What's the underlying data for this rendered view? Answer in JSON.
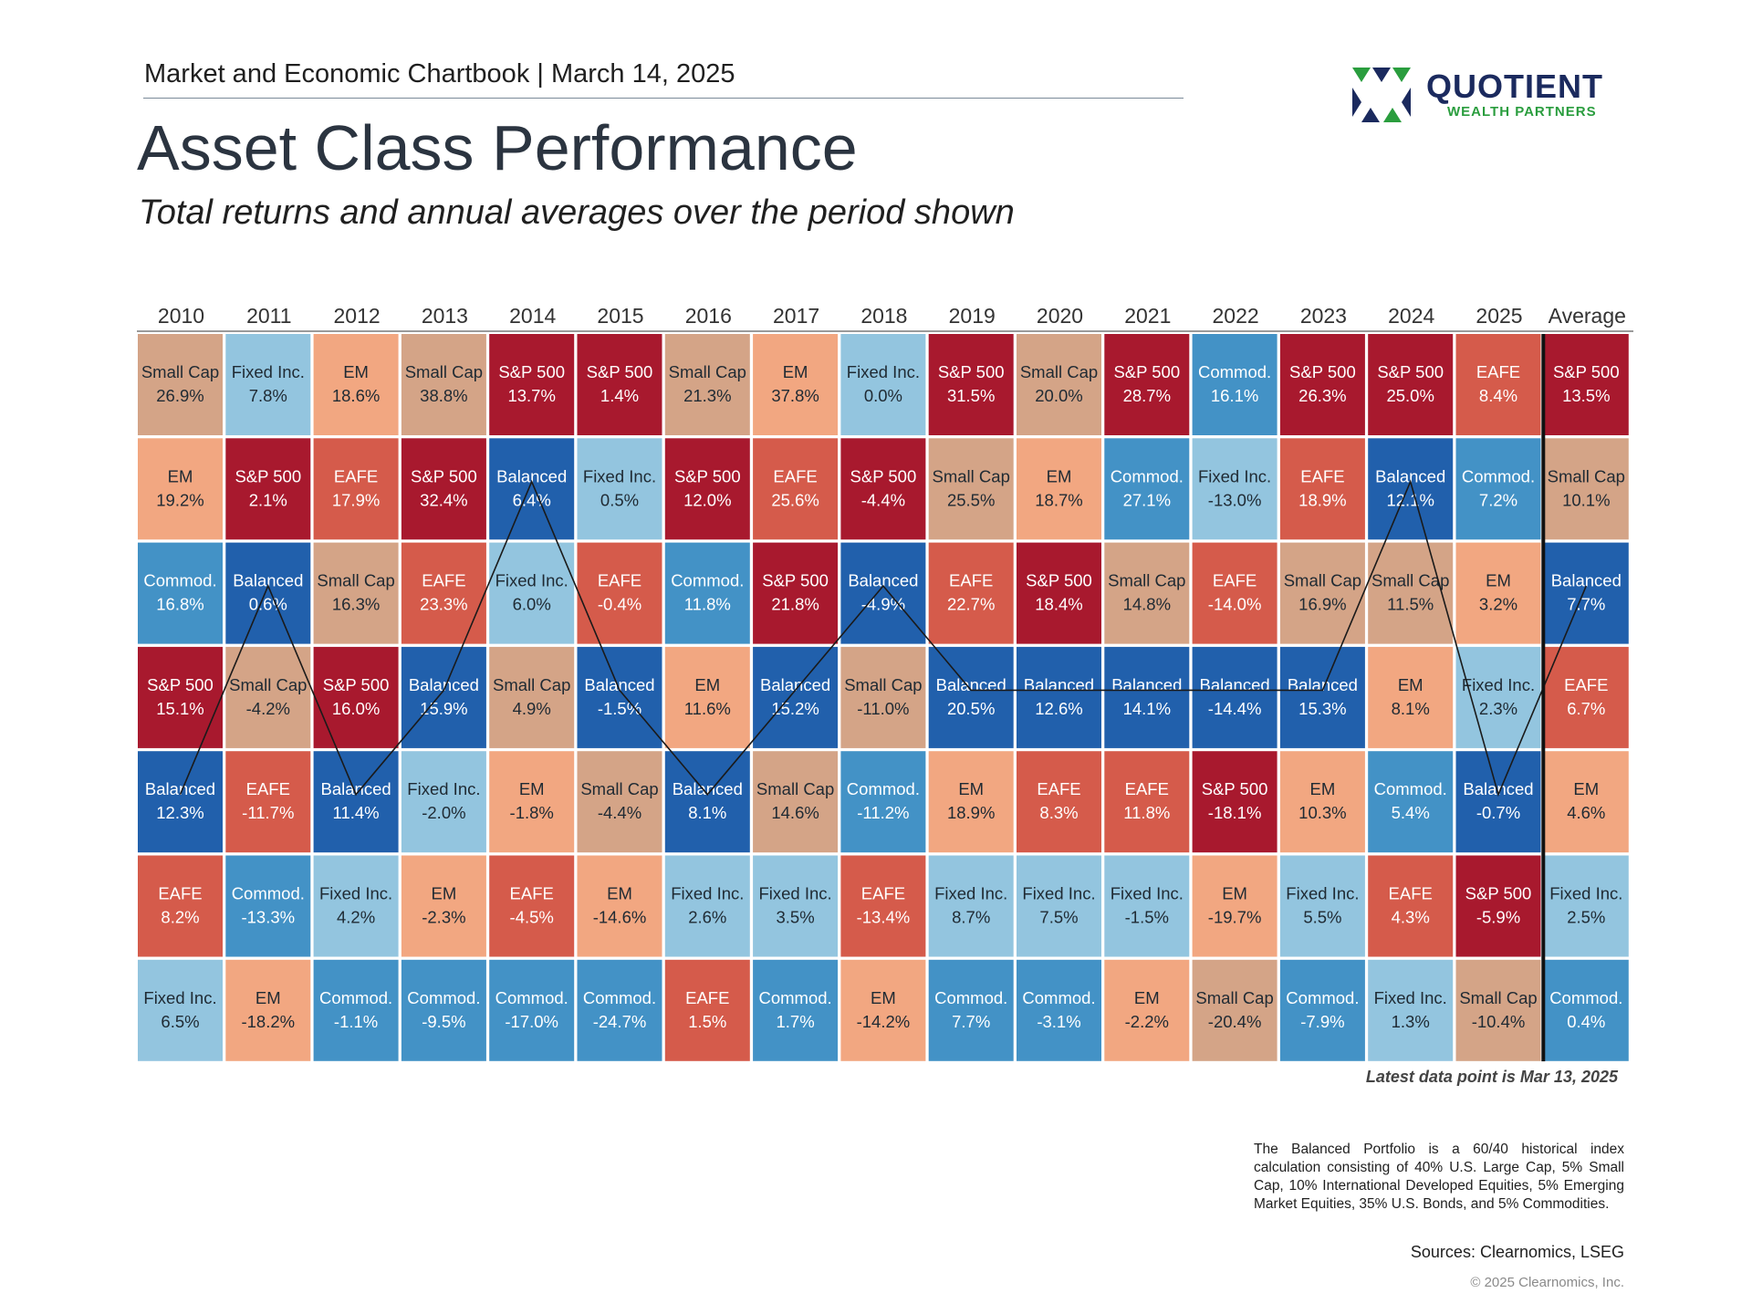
{
  "header": {
    "line": "Market and Economic Chartbook | March 14, 2025",
    "title": "Asset Class Performance",
    "subtitle": "Total returns and annual averages over the period shown"
  },
  "logo": {
    "name": "QUOTIENT",
    "tagline": "WEALTH PARTNERS",
    "colors": {
      "navy": "#1b2a5e",
      "green": "#2a9d3e"
    }
  },
  "colors": {
    "S&P 500": "#a8192e",
    "Small Cap": "#d4a487",
    "EM": "#f2a781",
    "EAFE": "#d55b4b",
    "Balanced": "#2160ac",
    "Commod.": "#4392c6",
    "Fixed Inc.": "#93c5df"
  },
  "chart_data": {
    "type": "table",
    "columns": [
      "2010",
      "2011",
      "2012",
      "2013",
      "2014",
      "2015",
      "2016",
      "2017",
      "2018",
      "2019",
      "2020",
      "2021",
      "2022",
      "2023",
      "2024",
      "2025",
      "Average"
    ],
    "rows_ranked": true,
    "data": [
      [
        [
          "Small Cap",
          "26.9%"
        ],
        [
          "EM",
          "19.2%"
        ],
        [
          "Commod.",
          "16.8%"
        ],
        [
          "S&P 500",
          "15.1%"
        ],
        [
          "Balanced",
          "12.3%"
        ],
        [
          "EAFE",
          "8.2%"
        ],
        [
          "Fixed Inc.",
          "6.5%"
        ]
      ],
      [
        [
          "Fixed Inc.",
          "7.8%"
        ],
        [
          "S&P 500",
          "2.1%"
        ],
        [
          "Balanced",
          "0.6%"
        ],
        [
          "Small Cap",
          "-4.2%"
        ],
        [
          "EAFE",
          "-11.7%"
        ],
        [
          "Commod.",
          "-13.3%"
        ],
        [
          "EM",
          "-18.2%"
        ]
      ],
      [
        [
          "EM",
          "18.6%"
        ],
        [
          "EAFE",
          "17.9%"
        ],
        [
          "Small Cap",
          "16.3%"
        ],
        [
          "S&P 500",
          "16.0%"
        ],
        [
          "Balanced",
          "11.4%"
        ],
        [
          "Fixed Inc.",
          "4.2%"
        ],
        [
          "Commod.",
          "-1.1%"
        ]
      ],
      [
        [
          "Small Cap",
          "38.8%"
        ],
        [
          "S&P 500",
          "32.4%"
        ],
        [
          "EAFE",
          "23.3%"
        ],
        [
          "Balanced",
          "15.9%"
        ],
        [
          "Fixed Inc.",
          "-2.0%"
        ],
        [
          "EM",
          "-2.3%"
        ],
        [
          "Commod.",
          "-9.5%"
        ]
      ],
      [
        [
          "S&P 500",
          "13.7%"
        ],
        [
          "Balanced",
          "6.4%"
        ],
        [
          "Fixed Inc.",
          "6.0%"
        ],
        [
          "Small Cap",
          "4.9%"
        ],
        [
          "EM",
          "-1.8%"
        ],
        [
          "EAFE",
          "-4.5%"
        ],
        [
          "Commod.",
          "-17.0%"
        ]
      ],
      [
        [
          "S&P 500",
          "1.4%"
        ],
        [
          "Fixed Inc.",
          "0.5%"
        ],
        [
          "EAFE",
          "-0.4%"
        ],
        [
          "Balanced",
          "-1.5%"
        ],
        [
          "Small Cap",
          "-4.4%"
        ],
        [
          "EM",
          "-14.6%"
        ],
        [
          "Commod.",
          "-24.7%"
        ]
      ],
      [
        [
          "Small Cap",
          "21.3%"
        ],
        [
          "S&P 500",
          "12.0%"
        ],
        [
          "Commod.",
          "11.8%"
        ],
        [
          "EM",
          "11.6%"
        ],
        [
          "Balanced",
          "8.1%"
        ],
        [
          "Fixed Inc.",
          "2.6%"
        ],
        [
          "EAFE",
          "1.5%"
        ]
      ],
      [
        [
          "EM",
          "37.8%"
        ],
        [
          "EAFE",
          "25.6%"
        ],
        [
          "S&P 500",
          "21.8%"
        ],
        [
          "Balanced",
          "15.2%"
        ],
        [
          "Small Cap",
          "14.6%"
        ],
        [
          "Fixed Inc.",
          "3.5%"
        ],
        [
          "Commod.",
          "1.7%"
        ]
      ],
      [
        [
          "Fixed Inc.",
          "0.0%"
        ],
        [
          "S&P 500",
          "-4.4%"
        ],
        [
          "Balanced",
          "-4.9%"
        ],
        [
          "Small Cap",
          "-11.0%"
        ],
        [
          "Commod.",
          "-11.2%"
        ],
        [
          "EAFE",
          "-13.4%"
        ],
        [
          "EM",
          "-14.2%"
        ]
      ],
      [
        [
          "S&P 500",
          "31.5%"
        ],
        [
          "Small Cap",
          "25.5%"
        ],
        [
          "EAFE",
          "22.7%"
        ],
        [
          "Balanced",
          "20.5%"
        ],
        [
          "EM",
          "18.9%"
        ],
        [
          "Fixed Inc.",
          "8.7%"
        ],
        [
          "Commod.",
          "7.7%"
        ]
      ],
      [
        [
          "Small Cap",
          "20.0%"
        ],
        [
          "EM",
          "18.7%"
        ],
        [
          "S&P 500",
          "18.4%"
        ],
        [
          "Balanced",
          "12.6%"
        ],
        [
          "EAFE",
          "8.3%"
        ],
        [
          "Fixed Inc.",
          "7.5%"
        ],
        [
          "Commod.",
          "-3.1%"
        ]
      ],
      [
        [
          "S&P 500",
          "28.7%"
        ],
        [
          "Commod.",
          "27.1%"
        ],
        [
          "Small Cap",
          "14.8%"
        ],
        [
          "Balanced",
          "14.1%"
        ],
        [
          "EAFE",
          "11.8%"
        ],
        [
          "Fixed Inc.",
          "-1.5%"
        ],
        [
          "EM",
          "-2.2%"
        ]
      ],
      [
        [
          "Commod.",
          "16.1%"
        ],
        [
          "Fixed Inc.",
          "-13.0%"
        ],
        [
          "EAFE",
          "-14.0%"
        ],
        [
          "Balanced",
          "-14.4%"
        ],
        [
          "S&P 500",
          "-18.1%"
        ],
        [
          "EM",
          "-19.7%"
        ],
        [
          "Small Cap",
          "-20.4%"
        ]
      ],
      [
        [
          "S&P 500",
          "26.3%"
        ],
        [
          "EAFE",
          "18.9%"
        ],
        [
          "Small Cap",
          "16.9%"
        ],
        [
          "Balanced",
          "15.3%"
        ],
        [
          "EM",
          "10.3%"
        ],
        [
          "Fixed Inc.",
          "5.5%"
        ],
        [
          "Commod.",
          "-7.9%"
        ]
      ],
      [
        [
          "S&P 500",
          "25.0%"
        ],
        [
          "Balanced",
          "12.1%"
        ],
        [
          "Small Cap",
          "11.5%"
        ],
        [
          "EM",
          "8.1%"
        ],
        [
          "Commod.",
          "5.4%"
        ],
        [
          "EAFE",
          "4.3%"
        ],
        [
          "Fixed Inc.",
          "1.3%"
        ]
      ],
      [
        [
          "EAFE",
          "8.4%"
        ],
        [
          "Commod.",
          "7.2%"
        ],
        [
          "EM",
          "3.2%"
        ],
        [
          "Fixed Inc.",
          "2.3%"
        ],
        [
          "Balanced",
          "-0.7%"
        ],
        [
          "S&P 500",
          "-5.9%"
        ],
        [
          "Small Cap",
          "-10.4%"
        ]
      ],
      [
        [
          "S&P 500",
          "13.5%"
        ],
        [
          "Small Cap",
          "10.1%"
        ],
        [
          "Balanced",
          "7.7%"
        ],
        [
          "EAFE",
          "6.7%"
        ],
        [
          "EM",
          "4.6%"
        ],
        [
          "Fixed Inc.",
          "2.5%"
        ],
        [
          "Commod.",
          "0.4%"
        ]
      ]
    ],
    "highlight_line_series": "Balanced",
    "note": "Latest data point is Mar 13, 2025"
  },
  "footnote": "The Balanced Portfolio is a 60/40 historical index calculation consisting of 40% U.S. Large Cap, 5% Small Cap, 10% International Developed Equities, 5% Emerging Market Equities, 35% U.S. Bonds, and 5% Commodities.",
  "sources": "Sources: Clearnomics, LSEG",
  "copyright": "© 2025 Clearnomics, Inc."
}
